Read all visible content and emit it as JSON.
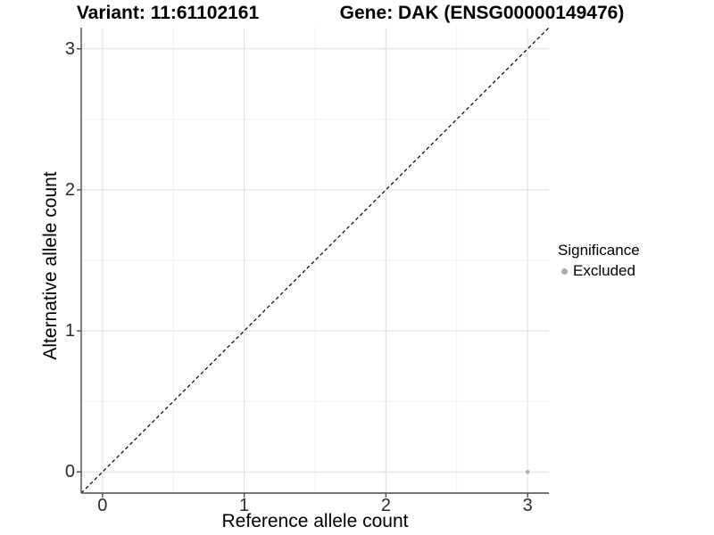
{
  "figure": {
    "title_left": "Variant: 11:61102161",
    "title_right": "Gene: DAK (ENSG00000149476)"
  },
  "chart_data": {
    "type": "scatter",
    "title": "Variant: 11:61102161 / Gene: DAK (ENSG00000149476)",
    "xlabel": "Reference allele count",
    "ylabel": "Alternative allele count",
    "xlim": [
      -0.15,
      3.15
    ],
    "ylim": [
      -0.15,
      3.15
    ],
    "x_ticks": [
      0,
      1,
      2,
      3
    ],
    "y_ticks": [
      0,
      1,
      2,
      3
    ],
    "minor_ticks": [
      0.5,
      1.5,
      2.5
    ],
    "grid": true,
    "identity_line": {
      "equation": "y = x",
      "style": "dashed",
      "color": "#000000"
    },
    "series": [
      {
        "name": "Excluded",
        "color": "#adadad",
        "points": [
          {
            "x": 3,
            "y": 0
          }
        ]
      }
    ],
    "legend": {
      "title": "Significance",
      "position": "right",
      "items": [
        {
          "label": "Excluded",
          "color": "#adadad"
        }
      ]
    },
    "colors": {
      "major_grid": "#e4e4e4",
      "minor_grid": "#f1f1f1",
      "axis_line": "#4a4a4a",
      "background": "#ffffff"
    }
  }
}
